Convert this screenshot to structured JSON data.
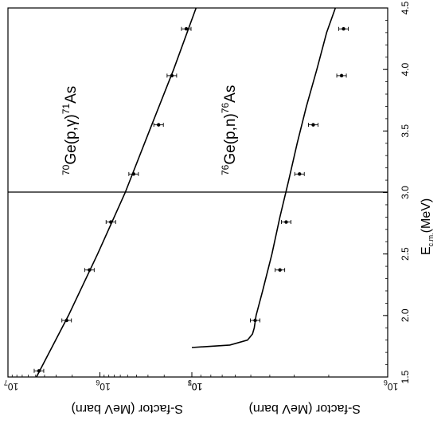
{
  "chart_data": {
    "type": "scatter",
    "orientation_note_visible": "rotated",
    "shared_axis": {
      "label_main": "E",
      "label_sub": "c.m.",
      "label_unit": "(MeV)",
      "range": [
        1.5,
        4.5
      ],
      "ticks": [
        "1.5",
        "2.0",
        "2.5",
        "3.0",
        "3.5",
        "4.0",
        "4.5"
      ]
    },
    "panels": [
      {
        "id": "upper",
        "annotation": {
          "a1": "70",
          "t1": "Ge(p,",
          "gamma": "γ",
          "t2": ")",
          "a2": "71",
          "t3": "As"
        },
        "ylabel": "S-factor (MeV barn)",
        "yscale": "log",
        "ylim": [
          100000.0,
          10000000.0
        ],
        "yticks": [
          {
            "base": "10",
            "exp": "7",
            "value": 10000000.0
          },
          {
            "base": "10",
            "exp": "6",
            "value": 1000000.0
          },
          {
            "base": "10",
            "exp": "5",
            "value": 100000.0
          }
        ],
        "series": [
          {
            "kind": "points",
            "x": [
              1.55,
              1.96,
              2.37,
              2.76,
              3.15,
              3.55,
              3.95,
              4.33
            ],
            "y": [
              4600000.0,
              2300000.0,
              1300000.0,
              760000.0,
              430000.0,
              230000.0,
              165000.0,
              115000.0
            ],
            "x_err": 0.02
          },
          {
            "kind": "line",
            "x": [
              1.5,
              2.0,
              2.5,
              3.0,
              3.5,
              4.0,
              4.5
            ],
            "y": [
              4900000.0,
              2200000.0,
              1060000.0,
              530000.0,
              290000.0,
              158000.0,
              90000.0
            ]
          }
        ]
      },
      {
        "id": "lower",
        "annotation": {
          "a1": "76",
          "t1": "Ge(p,n)",
          "a2": "76",
          "t2": "As"
        },
        "ylabel": "S-factor (MeV barn)",
        "yscale": "log",
        "ylim": [
          1000000.0,
          10000000.0
        ],
        "yticks": [
          {
            "base": "10",
            "exp": "7",
            "value": 10000000.0
          },
          {
            "base": "10",
            "exp": "6",
            "value": 1000000.0
          }
        ],
        "series": [
          {
            "kind": "points",
            "x": [
              1.96,
              2.37,
              2.76,
              3.15,
              3.55,
              3.95,
              4.33
            ],
            "y": [
              4750000.0,
              3550000.0,
              3300000.0,
              2820000.0,
              2400000.0,
              1720000.0,
              1680000.0
            ],
            "x_err": 0.04
          },
          {
            "kind": "line",
            "x": [
              1.74,
              1.76,
              1.8,
              1.85,
              1.9,
              2.0,
              2.2,
              2.5,
              2.8,
              3.1,
              3.4,
              3.7,
              4.0,
              4.3,
              4.5
            ],
            "y": [
              10000000.0,
              6400000.0,
              5200000.0,
              4900000.0,
              4800000.0,
              4700000.0,
              4350000.0,
              3900000.0,
              3550000.0,
              3200000.0,
              2900000.0,
              2600000.0,
              2300000.0,
              2050000.0,
              1850000.0
            ]
          }
        ]
      }
    ]
  }
}
